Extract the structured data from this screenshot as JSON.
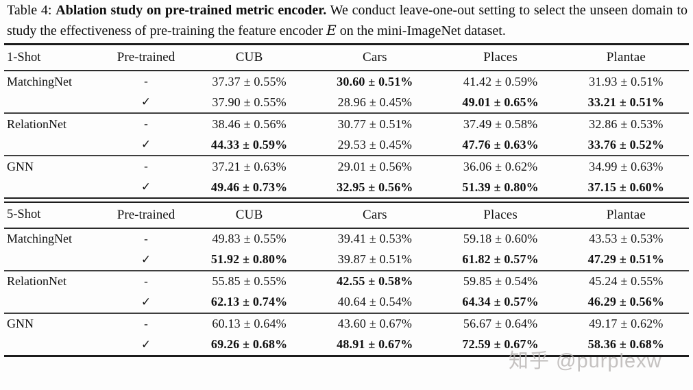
{
  "caption": {
    "label": "Table 4:",
    "title_bold": "Ablation study on pre-trained metric encoder.",
    "body_part1": "We conduct leave-one-out setting to select the unseen domain to study the effectiveness of pre-training the feature encoder",
    "encoder_symbol": "E",
    "body_part2": "on the mini-ImageNet dataset."
  },
  "table": {
    "column_headers": [
      "Pre-trained",
      "CUB",
      "Cars",
      "Places",
      "Plantae"
    ],
    "sections": [
      {
        "label": "1-Shot",
        "groups": [
          {
            "method": "MatchingNet",
            "rows": [
              {
                "pretrained": "-",
                "cells": [
                  {
                    "t": "37.37 ± 0.55%",
                    "b": false
                  },
                  {
                    "t": "30.60 ± 0.51%",
                    "b": true
                  },
                  {
                    "t": "41.42 ± 0.59%",
                    "b": false
                  },
                  {
                    "t": "31.93 ± 0.51%",
                    "b": false
                  }
                ]
              },
              {
                "pretrained": "✓",
                "cells": [
                  {
                    "t": "37.90 ± 0.55%",
                    "b": false
                  },
                  {
                    "t": "28.96 ± 0.45%",
                    "b": false
                  },
                  {
                    "t": "49.01 ± 0.65%",
                    "b": true
                  },
                  {
                    "t": "33.21 ± 0.51%",
                    "b": true
                  }
                ]
              }
            ]
          },
          {
            "method": "RelationNet",
            "rows": [
              {
                "pretrained": "-",
                "cells": [
                  {
                    "t": "38.46 ± 0.56%",
                    "b": false
                  },
                  {
                    "t": "30.77 ± 0.51%",
                    "b": false
                  },
                  {
                    "t": "37.49 ± 0.58%",
                    "b": false
                  },
                  {
                    "t": "32.86 ± 0.53%",
                    "b": false
                  }
                ]
              },
              {
                "pretrained": "✓",
                "cells": [
                  {
                    "t": "44.33 ± 0.59%",
                    "b": true
                  },
                  {
                    "t": "29.53 ± 0.45%",
                    "b": false
                  },
                  {
                    "t": "47.76 ± 0.63%",
                    "b": true
                  },
                  {
                    "t": "33.76 ± 0.52%",
                    "b": true
                  }
                ]
              }
            ]
          },
          {
            "method": "GNN",
            "rows": [
              {
                "pretrained": "-",
                "cells": [
                  {
                    "t": "37.21 ± 0.63%",
                    "b": false
                  },
                  {
                    "t": "29.01 ± 0.56%",
                    "b": false
                  },
                  {
                    "t": "36.06 ± 0.62%",
                    "b": false
                  },
                  {
                    "t": "34.99 ± 0.63%",
                    "b": false
                  }
                ]
              },
              {
                "pretrained": "✓",
                "cells": [
                  {
                    "t": "49.46 ± 0.73%",
                    "b": true
                  },
                  {
                    "t": "32.95 ± 0.56%",
                    "b": true
                  },
                  {
                    "t": "51.39 ± 0.80%",
                    "b": true
                  },
                  {
                    "t": "37.15 ± 0.60%",
                    "b": true
                  }
                ]
              }
            ]
          }
        ]
      },
      {
        "label": "5-Shot",
        "groups": [
          {
            "method": "MatchingNet",
            "rows": [
              {
                "pretrained": "-",
                "cells": [
                  {
                    "t": "49.83 ± 0.55%",
                    "b": false
                  },
                  {
                    "t": "39.41 ± 0.53%",
                    "b": false
                  },
                  {
                    "t": "59.18 ± 0.60%",
                    "b": false
                  },
                  {
                    "t": "43.53 ± 0.53%",
                    "b": false
                  }
                ]
              },
              {
                "pretrained": "✓",
                "cells": [
                  {
                    "t": "51.92 ± 0.80%",
                    "b": true
                  },
                  {
                    "t": "39.87 ± 0.51%",
                    "b": false
                  },
                  {
                    "t": "61.82 ± 0.57%",
                    "b": true
                  },
                  {
                    "t": "47.29 ± 0.51%",
                    "b": true
                  }
                ]
              }
            ]
          },
          {
            "method": "RelationNet",
            "rows": [
              {
                "pretrained": "-",
                "cells": [
                  {
                    "t": "55.85 ± 0.55%",
                    "b": false
                  },
                  {
                    "t": "42.55 ± 0.58%",
                    "b": true
                  },
                  {
                    "t": "59.85 ± 0.54%",
                    "b": false
                  },
                  {
                    "t": "45.24 ± 0.55%",
                    "b": false
                  }
                ]
              },
              {
                "pretrained": "✓",
                "cells": [
                  {
                    "t": "62.13 ± 0.74%",
                    "b": true
                  },
                  {
                    "t": "40.64 ± 0.54%",
                    "b": false
                  },
                  {
                    "t": "64.34 ± 0.57%",
                    "b": true
                  },
                  {
                    "t": "46.29 ± 0.56%",
                    "b": true
                  }
                ]
              }
            ]
          },
          {
            "method": "GNN",
            "rows": [
              {
                "pretrained": "-",
                "cells": [
                  {
                    "t": "60.13 ± 0.64%",
                    "b": false
                  },
                  {
                    "t": "43.60 ± 0.67%",
                    "b": false
                  },
                  {
                    "t": "56.67 ± 0.64%",
                    "b": false
                  },
                  {
                    "t": "49.17 ± 0.62%",
                    "b": false
                  }
                ]
              },
              {
                "pretrained": "✓",
                "cells": [
                  {
                    "t": "69.26 ± 0.68%",
                    "b": true
                  },
                  {
                    "t": "48.91 ± 0.67%",
                    "b": true
                  },
                  {
                    "t": "72.59 ± 0.67%",
                    "b": true
                  },
                  {
                    "t": "58.36 ± 0.68%",
                    "b": true
                  }
                ]
              }
            ]
          }
        ]
      }
    ]
  },
  "watermark": {
    "text": "知乎 @purplexw",
    "color": "#b7b3b1"
  }
}
